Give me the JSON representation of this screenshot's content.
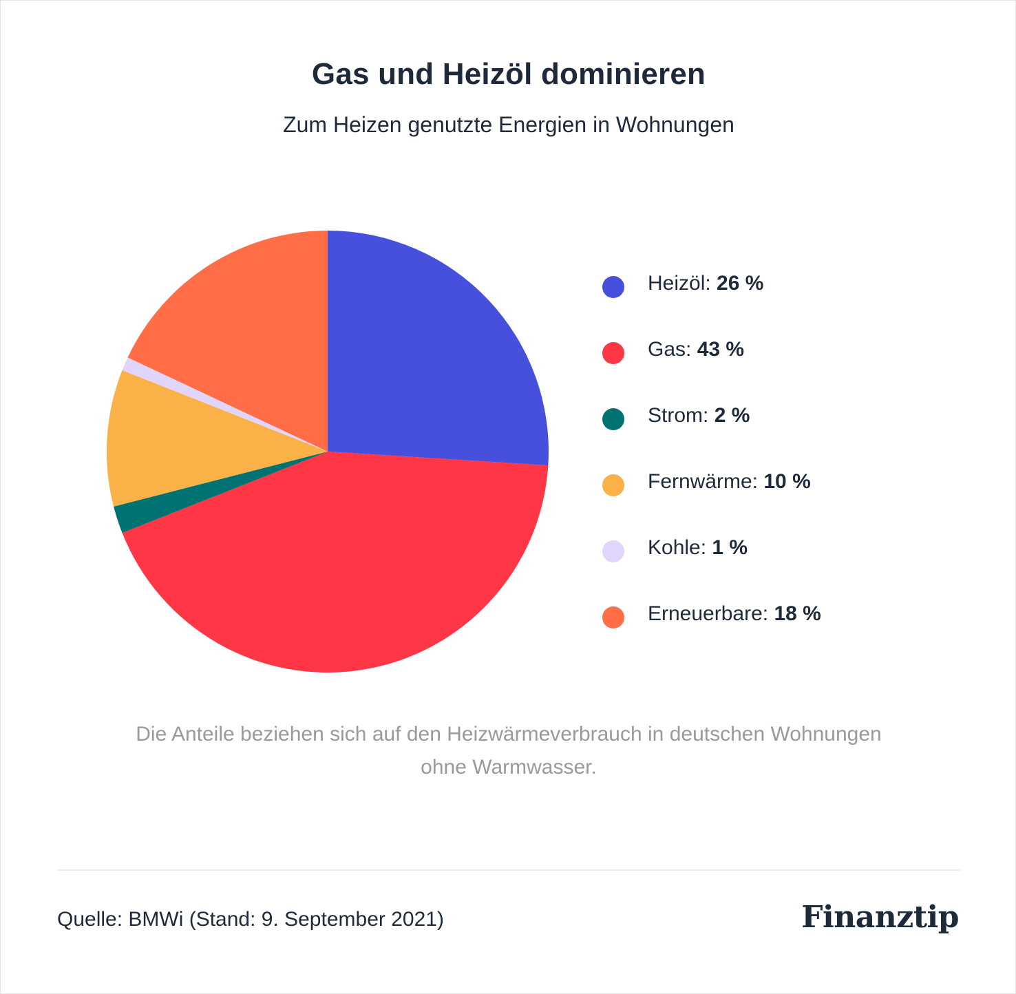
{
  "chart_data": {
    "type": "pie",
    "title": "Gas und Heizöl dominieren",
    "subtitle": "Zum Heizen genutzte Energien in Wohnungen",
    "unit": "%",
    "legend_position": "right",
    "slices": [
      {
        "label": "Heizöl",
        "value": 26,
        "value_text": "26 %",
        "color": "#4650dd"
      },
      {
        "label": "Gas",
        "value": 43,
        "value_text": "43 %",
        "color": "#ff3646"
      },
      {
        "label": "Strom",
        "value": 2,
        "value_text": "2 %",
        "color": "#007272"
      },
      {
        "label": "Fernwärme",
        "value": 10,
        "value_text": "10 %",
        "color": "#f9b148"
      },
      {
        "label": "Kohle",
        "value": 1,
        "value_text": "1 %",
        "color": "#e2d5fb"
      },
      {
        "label": "Erneuerbare",
        "value": 18,
        "value_text": "18 %",
        "color": "#ff6e46"
      }
    ]
  },
  "footnote": "Die Anteile beziehen sich auf den Heizwärmeverbrauch in deutschen Wohnungen ohne Warmwasser.",
  "source": "Quelle: BMWi (Stand: 9. September 2021)",
  "brand": "Finanztip"
}
